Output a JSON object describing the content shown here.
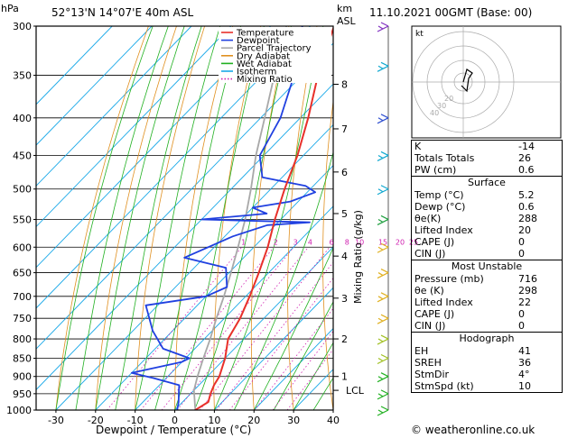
{
  "header": {
    "station": "52°13'N 14°07'E 40m ASL",
    "datetime": "11.10.2021 00GMT (Base: 00)",
    "hpa_label": "hPa",
    "km_label": "km",
    "asl_label": "ASL",
    "footer": "© weatheronline.co.uk"
  },
  "chart_data": {
    "type": "skew-t",
    "xlabel": "Dewpoint / Temperature (°C)",
    "ylabel_right": "Mixing Ratio (g/kg)",
    "xlim": [
      -35,
      40
    ],
    "ylim_hpa": [
      1000,
      300
    ],
    "pressure_ticks": [
      300,
      350,
      400,
      450,
      500,
      550,
      600,
      650,
      700,
      750,
      800,
      850,
      900,
      950,
      1000
    ],
    "temp_ticks": [
      -30,
      -20,
      -10,
      0,
      10,
      20,
      30,
      40
    ],
    "km_ticks": [
      {
        "label": "1",
        "p": 900
      },
      {
        "label": "2",
        "p": 800
      },
      {
        "label": "3",
        "p": 704
      },
      {
        "label": "4",
        "p": 617
      },
      {
        "label": "5",
        "p": 540
      },
      {
        "label": "6",
        "p": 474
      },
      {
        "label": "7",
        "p": 414
      },
      {
        "label": "8",
        "p": 360
      }
    ],
    "lcl": {
      "label": "LCL",
      "p": 940
    },
    "mixing_ratio_labels": [
      "1",
      "2",
      "3",
      "4",
      "6",
      "8",
      "10",
      "15",
      "20",
      "25"
    ],
    "mixing_ratio_values": [
      1,
      2,
      3,
      4,
      6,
      8,
      10,
      15,
      20,
      25
    ],
    "legend": [
      {
        "name": "Temperature",
        "color": "#e8302a"
      },
      {
        "name": "Dewpoint",
        "color": "#2040e0"
      },
      {
        "name": "Parcel Trajectory",
        "color": "#a8a8a8"
      },
      {
        "name": "Dry Adiabat",
        "color": "#e09020"
      },
      {
        "name": "Wet Adiabat",
        "color": "#20b020"
      },
      {
        "name": "Isotherm",
        "color": "#18a8e8"
      },
      {
        "name": "Mixing Ratio",
        "color": "#d020b0"
      }
    ],
    "temperature": [
      {
        "p": 1000,
        "t": 5.2
      },
      {
        "p": 975,
        "t": 6.5
      },
      {
        "p": 950,
        "t": 5.0
      },
      {
        "p": 925,
        "t": 3.8
      },
      {
        "p": 900,
        "t": 3.0
      },
      {
        "p": 850,
        "t": 0.0
      },
      {
        "p": 800,
        "t": -4.0
      },
      {
        "p": 750,
        "t": -6.0
      },
      {
        "p": 700,
        "t": -9.0
      },
      {
        "p": 650,
        "t": -12.5
      },
      {
        "p": 600,
        "t": -16.5
      },
      {
        "p": 550,
        "t": -21.5
      },
      {
        "p": 500,
        "t": -26.5
      },
      {
        "p": 450,
        "t": -31.5
      },
      {
        "p": 400,
        "t": -38.0
      },
      {
        "p": 350,
        "t": -46.0
      },
      {
        "p": 300,
        "t": -54.0
      }
    ],
    "dewpoint": [
      {
        "p": 1000,
        "t": 0.6
      },
      {
        "p": 975,
        "t": -1.0
      },
      {
        "p": 950,
        "t": -3.0
      },
      {
        "p": 925,
        "t": -5.0
      },
      {
        "p": 905,
        "t": -13.0
      },
      {
        "p": 890,
        "t": -20.0
      },
      {
        "p": 860,
        "t": -10.0
      },
      {
        "p": 850,
        "t": -9.0
      },
      {
        "p": 825,
        "t": -18.0
      },
      {
        "p": 780,
        "t": -25.0
      },
      {
        "p": 720,
        "t": -33.0
      },
      {
        "p": 700,
        "t": -20.0
      },
      {
        "p": 680,
        "t": -17.0
      },
      {
        "p": 640,
        "t": -22.0
      },
      {
        "p": 620,
        "t": -35.0
      },
      {
        "p": 580,
        "t": -28.0
      },
      {
        "p": 560,
        "t": -22.0
      },
      {
        "p": 555,
        "t": -12.0
      },
      {
        "p": 550,
        "t": -40.0
      },
      {
        "p": 540,
        "t": -25.0
      },
      {
        "p": 530,
        "t": -30.0
      },
      {
        "p": 520,
        "t": -22.0
      },
      {
        "p": 505,
        "t": -18.0
      },
      {
        "p": 495,
        "t": -22.0
      },
      {
        "p": 482,
        "t": -35.0
      },
      {
        "p": 450,
        "t": -41.0
      },
      {
        "p": 400,
        "t": -45.0
      },
      {
        "p": 350,
        "t": -52.0
      },
      {
        "p": 320,
        "t": -58.0
      },
      {
        "p": 300,
        "t": -62.0
      }
    ],
    "parcel": [
      {
        "p": 1000,
        "t": 5.2
      },
      {
        "p": 940,
        "t": 0.0
      },
      {
        "p": 900,
        "t": -2.5
      },
      {
        "p": 850,
        "t": -5.5
      },
      {
        "p": 800,
        "t": -8.5
      },
      {
        "p": 750,
        "t": -12.0
      },
      {
        "p": 700,
        "t": -15.5
      },
      {
        "p": 650,
        "t": -19.5
      },
      {
        "p": 600,
        "t": -24.0
      },
      {
        "p": 550,
        "t": -29.0
      },
      {
        "p": 500,
        "t": -35.0
      },
      {
        "p": 450,
        "t": -42.0
      },
      {
        "p": 400,
        "t": -49.0
      },
      {
        "p": 350,
        "t": -57.0
      },
      {
        "p": 300,
        "t": -66.0
      }
    ]
  },
  "hodograph": {
    "label": "kt",
    "ring_labels": [
      "20",
      "30",
      "40"
    ]
  },
  "indices": {
    "top": [
      {
        "label": "K",
        "value": "-14"
      },
      {
        "label": "Totals Totals",
        "value": "26"
      },
      {
        "label": "PW (cm)",
        "value": "0.6"
      }
    ],
    "surface_title": "Surface",
    "surface": [
      {
        "label": "Temp (°C)",
        "value": "5.2"
      },
      {
        "label": "Dewp (°C)",
        "value": "0.6"
      },
      {
        "label": "θe(K)",
        "value": "288"
      },
      {
        "label": "Lifted Index",
        "value": "20"
      },
      {
        "label": "CAPE (J)",
        "value": "0"
      },
      {
        "label": "CIN (J)",
        "value": "0"
      }
    ],
    "unstable_title": "Most Unstable",
    "unstable": [
      {
        "label": "Pressure (mb)",
        "value": "716"
      },
      {
        "label": "θe (K)",
        "value": "298"
      },
      {
        "label": "Lifted Index",
        "value": "22"
      },
      {
        "label": "CAPE (J)",
        "value": "0"
      },
      {
        "label": "CIN (J)",
        "value": "0"
      }
    ],
    "hodo_title": "Hodograph",
    "hodo": [
      {
        "label": "EH",
        "value": "41"
      },
      {
        "label": "SREH",
        "value": "36"
      },
      {
        "label": "StmDir",
        "value": "4°"
      },
      {
        "label": "StmSpd (kt)",
        "value": "10"
      }
    ]
  }
}
